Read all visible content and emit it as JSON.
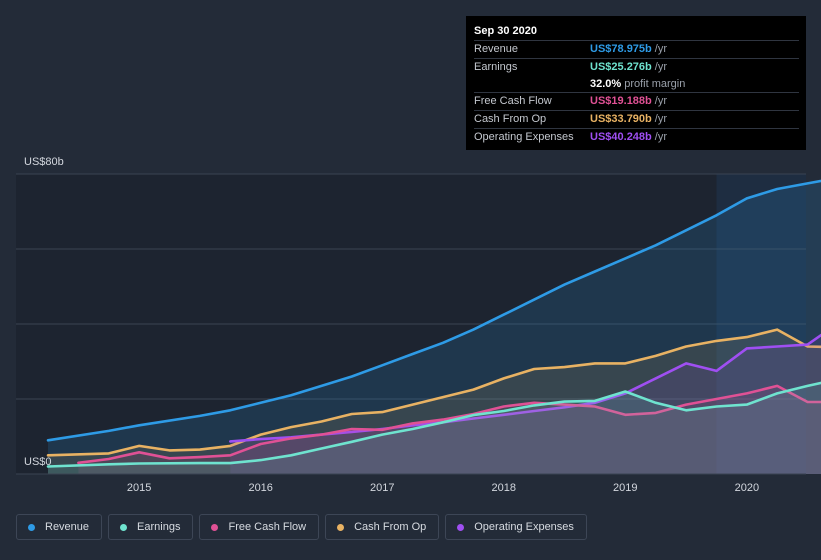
{
  "colors": {
    "revenue": "#2e9be6",
    "earnings": "#6fe3cf",
    "free_cash_flow": "#e05195",
    "cash_from_op": "#e8b263",
    "operating_expenses": "#9f4ff2"
  },
  "tooltip": {
    "date": "Sep 30 2020",
    "rows": [
      {
        "label": "Revenue",
        "value": "US$78.975b",
        "unit": "/yr",
        "color": "#2e9be6"
      },
      {
        "label": "Earnings",
        "value": "US$25.276b",
        "unit": "/yr",
        "color": "#6fe3cf"
      },
      {
        "label": "",
        "value": "32.0%",
        "unit": "profit margin",
        "color": "#ffffff"
      },
      {
        "label": "Free Cash Flow",
        "value": "US$19.188b",
        "unit": "/yr",
        "color": "#e05195"
      },
      {
        "label": "Cash From Op",
        "value": "US$33.790b",
        "unit": "/yr",
        "color": "#e8b263"
      },
      {
        "label": "Operating Expenses",
        "value": "US$40.248b",
        "unit": "/yr",
        "color": "#9f4ff2"
      }
    ]
  },
  "legend": [
    {
      "label": "Revenue",
      "color": "#2e9be6"
    },
    {
      "label": "Earnings",
      "color": "#6fe3cf"
    },
    {
      "label": "Free Cash Flow",
      "color": "#e05195"
    },
    {
      "label": "Cash From Op",
      "color": "#e8b263"
    },
    {
      "label": "Operating Expenses",
      "color": "#9f4ff2"
    }
  ],
  "chart_data": {
    "type": "line",
    "title": "",
    "ylabel": "",
    "xlabel": "",
    "y_top_label": "US$80b",
    "y_bottom_label": "US$0",
    "ylim": [
      0,
      80
    ],
    "xlim": [
      2014.25,
      2020.75
    ],
    "x_ticks": [
      "2015",
      "2016",
      "2017",
      "2018",
      "2019",
      "2020"
    ],
    "x_tick_values": [
      2015,
      2016,
      2017,
      2018,
      2019,
      2020
    ],
    "highlight_from": 2019.75,
    "series": [
      {
        "name": "Revenue",
        "key": "revenue",
        "x": [
          2014.25,
          2014.75,
          2015.0,
          2015.5,
          2015.75,
          2016.0,
          2016.25,
          2016.5,
          2016.75,
          2017.0,
          2017.25,
          2017.5,
          2017.75,
          2018.0,
          2018.25,
          2018.5,
          2018.75,
          2019.0,
          2019.25,
          2019.5,
          2019.75,
          2020.0,
          2020.25,
          2020.5,
          2020.75
        ],
        "values": [
          9,
          11.5,
          13,
          15.5,
          17,
          19,
          21,
          23.5,
          26,
          29,
          32,
          35,
          38.5,
          42.5,
          46.5,
          50.5,
          54,
          57.5,
          61,
          65,
          69,
          73.5,
          76,
          77.5,
          79
        ]
      },
      {
        "name": "Earnings",
        "key": "earnings",
        "x": [
          2014.25,
          2014.75,
          2015.0,
          2015.5,
          2015.75,
          2016.0,
          2016.25,
          2016.5,
          2016.75,
          2017.0,
          2017.25,
          2017.5,
          2017.75,
          2018.0,
          2018.25,
          2018.5,
          2018.75,
          2019.0,
          2019.25,
          2019.5,
          2019.75,
          2020.0,
          2020.25,
          2020.5,
          2020.75
        ],
        "values": [
          2,
          2.6,
          2.8,
          2.9,
          2.9,
          3.7,
          5,
          6.8,
          8.6,
          10.5,
          12,
          13.8,
          15.7,
          16.8,
          18.3,
          19.3,
          19.5,
          22,
          19,
          17,
          18,
          18.5,
          21.5,
          23.5,
          25.3
        ]
      },
      {
        "name": "Free Cash Flow",
        "key": "free_cash_flow",
        "x": [
          2014.5,
          2014.75,
          2015.0,
          2015.25,
          2015.5,
          2015.75,
          2016.0,
          2016.25,
          2016.5,
          2016.75,
          2017.0,
          2017.25,
          2017.5,
          2017.75,
          2018.0,
          2018.25,
          2018.5,
          2018.75,
          2019.0,
          2019.25,
          2019.5,
          2019.75,
          2020.0,
          2020.25,
          2020.5,
          2020.75
        ],
        "values": [
          3,
          4,
          5.8,
          4.2,
          4.5,
          5,
          8,
          9.5,
          10.5,
          12,
          11.8,
          13.5,
          14.5,
          16,
          18,
          19,
          18.5,
          18,
          15.8,
          16.3,
          18.5,
          20,
          21.5,
          23.5,
          19.2,
          19.2
        ]
      },
      {
        "name": "Cash From Op",
        "key": "cash_from_op",
        "x": [
          2014.25,
          2014.75,
          2015.0,
          2015.25,
          2015.5,
          2015.75,
          2016.0,
          2016.25,
          2016.5,
          2016.75,
          2017.0,
          2017.25,
          2017.5,
          2017.75,
          2018.0,
          2018.25,
          2018.5,
          2018.75,
          2019.0,
          2019.25,
          2019.5,
          2019.75,
          2020.0,
          2020.25,
          2020.5,
          2020.75
        ],
        "values": [
          5,
          5.5,
          7.5,
          6.3,
          6.5,
          7.5,
          10.5,
          12.5,
          14,
          16,
          16.5,
          18.5,
          20.5,
          22.5,
          25.5,
          28,
          28.5,
          29.5,
          29.5,
          31.5,
          34,
          35.5,
          36.5,
          38.5,
          34,
          33.8
        ]
      },
      {
        "name": "Operating Expenses",
        "key": "operating_expenses",
        "x": [
          2015.75,
          2016.0,
          2016.25,
          2016.5,
          2016.75,
          2017.0,
          2017.25,
          2017.5,
          2017.75,
          2018.0,
          2018.25,
          2018.5,
          2018.75,
          2019.0,
          2019.25,
          2019.5,
          2019.75,
          2020.0,
          2020.25,
          2020.5,
          2020.75
        ],
        "values": [
          8.7,
          9.3,
          9.8,
          10.5,
          11.2,
          12,
          13,
          13.8,
          14.8,
          15.8,
          16.8,
          17.8,
          19,
          21.5,
          25.5,
          29.5,
          27.5,
          33.5,
          34,
          34.5,
          40.2
        ]
      }
    ]
  }
}
